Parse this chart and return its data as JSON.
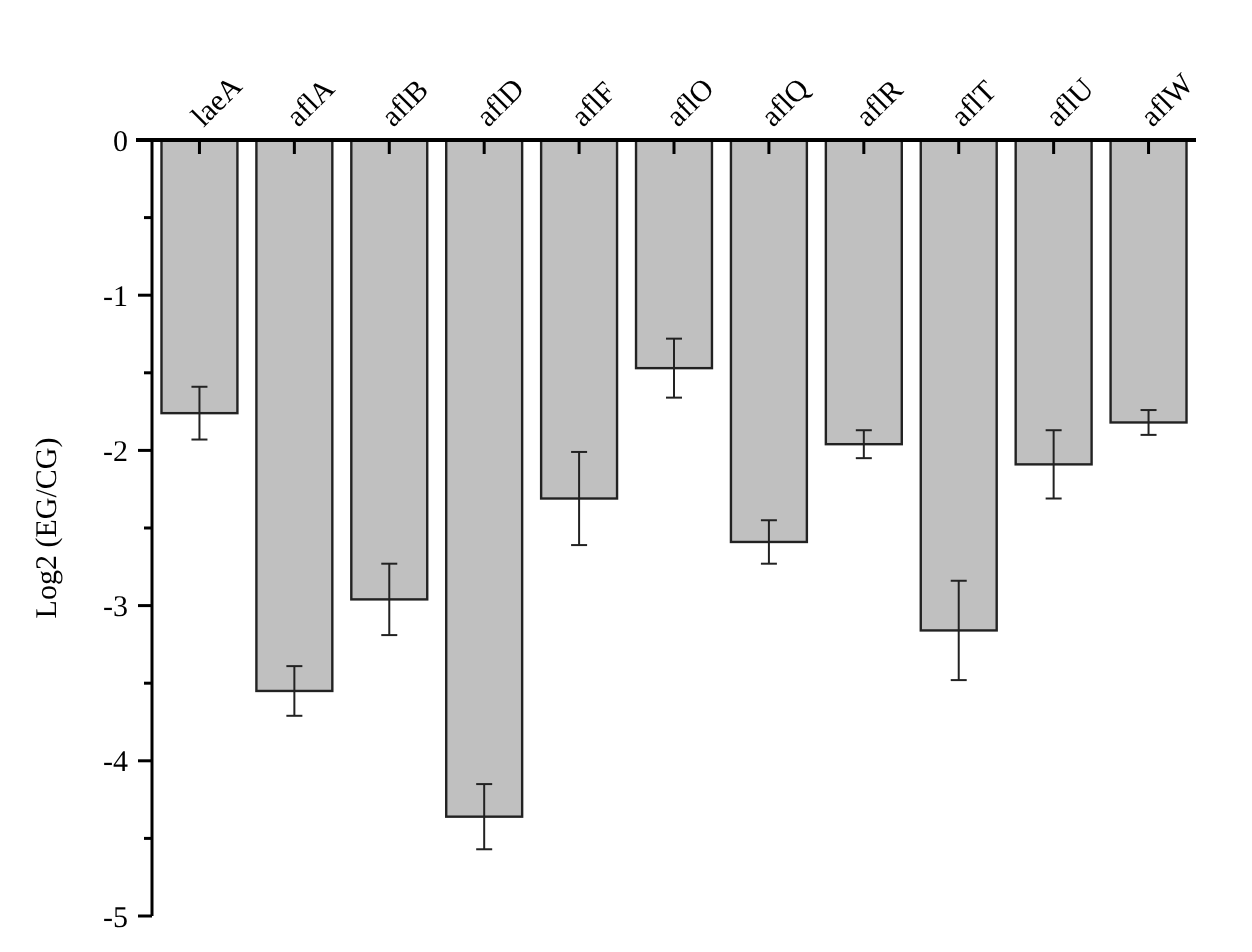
{
  "chart_data": {
    "type": "bar",
    "ylabel": "Log2 (EG/CG)",
    "categories": [
      "laeA",
      "aflA",
      "aflB",
      "aflD",
      "aflF",
      "aflO",
      "aflQ",
      "aflR",
      "aflT",
      "aflU",
      "aflW"
    ],
    "values": [
      -1.76,
      -3.55,
      -2.96,
      -4.36,
      -2.31,
      -1.47,
      -2.59,
      -1.96,
      -3.16,
      -2.09,
      -1.82
    ],
    "errors": [
      0.17,
      0.16,
      0.23,
      0.21,
      0.3,
      0.19,
      0.14,
      0.09,
      0.32,
      0.22,
      0.08
    ],
    "color": "#c0c0c0",
    "ylim": [
      -5,
      0
    ],
    "yticks": [
      -5,
      {
        "value": -4.5,
        "label": null
      },
      -4,
      {
        "value": -3.5,
        "label": null
      },
      -3,
      {
        "value": -2.5,
        "label": null
      },
      -2,
      {
        "value": -1.5,
        "label": null
      },
      -1,
      {
        "value": -0.5,
        "label": null
      },
      0
    ],
    "grid": false
  }
}
